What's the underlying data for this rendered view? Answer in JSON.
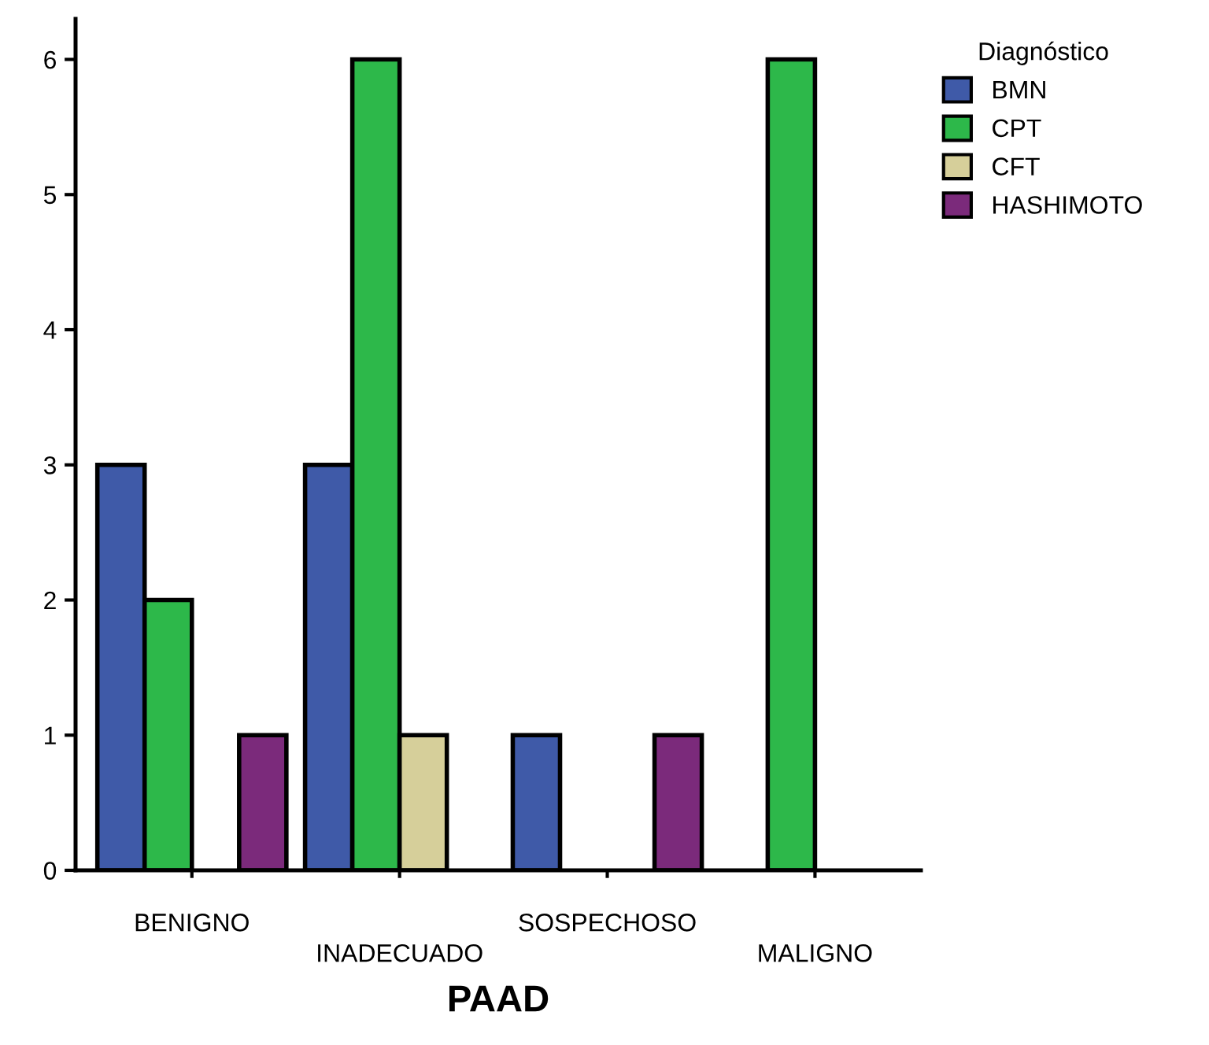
{
  "chart_data": {
    "type": "bar",
    "xlabel": "PAAD",
    "legend_title": "Diagnóstico",
    "categories": [
      "BENIGNO",
      "INADECUADO",
      "SOSPECHOSO",
      "MALIGNO"
    ],
    "series": [
      {
        "name": "BMN",
        "color": "#3f5aa8",
        "values": [
          3,
          3,
          1,
          0
        ]
      },
      {
        "name": "CPT",
        "color": "#2db84a",
        "values": [
          2,
          6,
          0,
          6
        ]
      },
      {
        "name": "CFT",
        "color": "#d6cf9a",
        "values": [
          0,
          1,
          0,
          0
        ]
      },
      {
        "name": "HASHIMOTO",
        "color": "#7b2a7b",
        "values": [
          1,
          0,
          1,
          0
        ]
      }
    ],
    "ylim": [
      0,
      6.3
    ],
    "yticks": [
      0,
      1,
      2,
      3,
      4,
      5,
      6
    ],
    "grid": false,
    "legend": "top right"
  }
}
